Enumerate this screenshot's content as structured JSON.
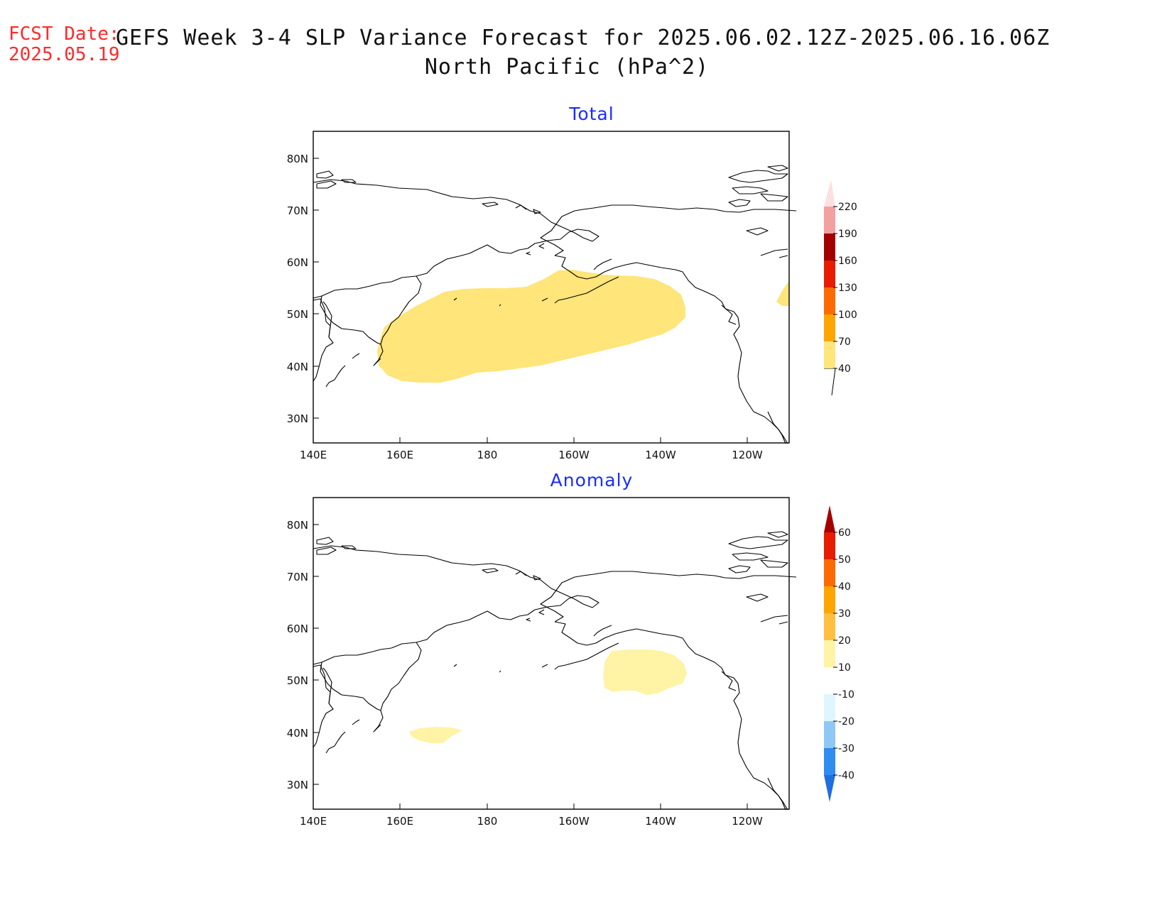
{
  "header": {
    "fcst_label": "FCST Date:",
    "fcst_date": "2025.05.19",
    "title_line1": "GEFS Week 3-4 SLP Variance Forecast for 2025.06.02.12Z-2025.06.16.06Z",
    "title_line2": "North Pacific (hPa^2)"
  },
  "axes": {
    "lat_labels": [
      "80N",
      "70N",
      "60N",
      "50N",
      "40N",
      "30N"
    ],
    "lon_labels": [
      "140E",
      "160E",
      "180",
      "160W",
      "140W",
      "120W"
    ]
  },
  "panels": [
    {
      "id": "total",
      "title": "Total",
      "colorbar": {
        "levels": [
          "40",
          "70",
          "100",
          "130",
          "160",
          "190",
          "220"
        ],
        "colors": [
          "#ffe57a",
          "#ffa500",
          "#ff6a00",
          "#e81c00",
          "#a50000",
          "#f2a0a0",
          "#fde0e0"
        ],
        "extend_low_color": "#ffffff"
      },
      "shaded_color": "#ffe57a"
    },
    {
      "id": "anomaly",
      "title": "Anomaly",
      "colorbar": {
        "levels": [
          "-40",
          "-30",
          "-20",
          "-10",
          "10",
          "20",
          "30",
          "40",
          "50",
          "60"
        ],
        "colors": [
          "#1e6fe0",
          "#2f8cf0",
          "#8fc8f5",
          "#dff5ff",
          "#ffffff",
          "#fff3a6",
          "#ffbf3f",
          "#ffa500",
          "#ff6a00",
          "#e81c00",
          "#a50000"
        ],
        "extend_low_color": "#1e6fe0",
        "extend_high_color": "#a50000"
      },
      "shaded_color": "#fff3a6"
    }
  ]
}
